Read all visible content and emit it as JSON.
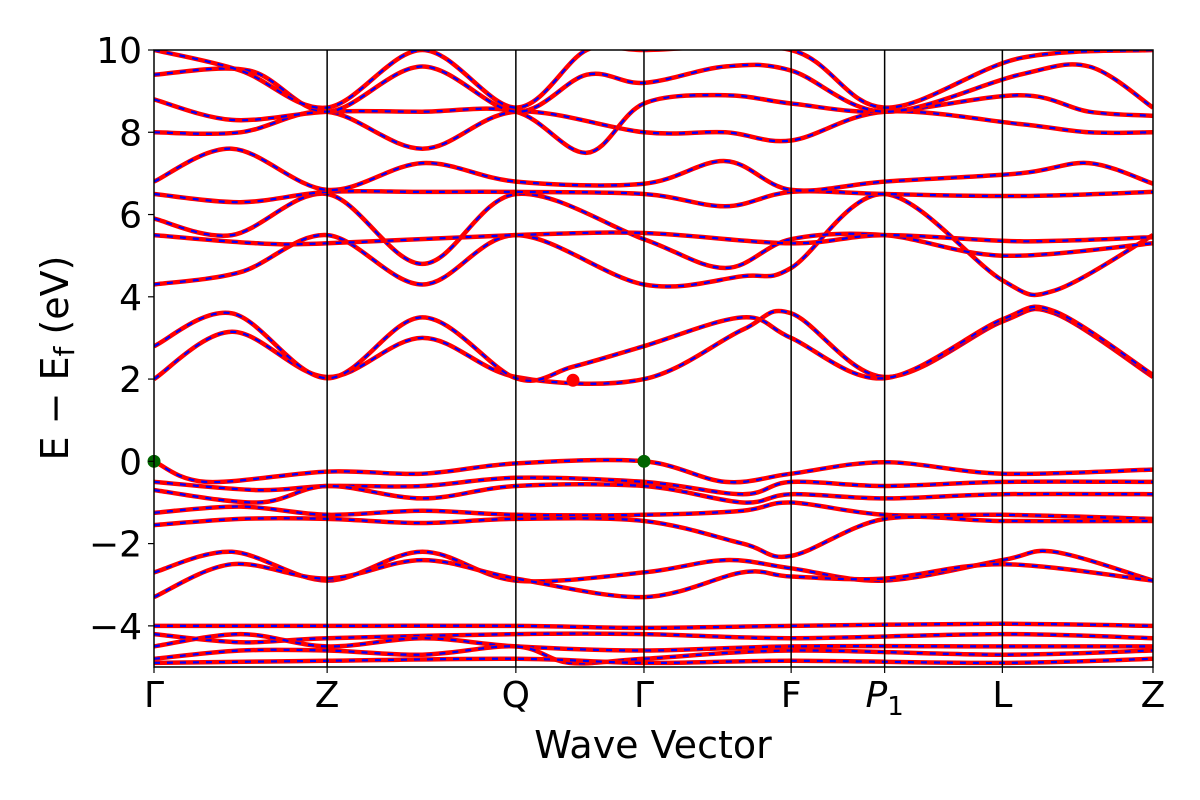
{
  "chart_data": {
    "type": "line",
    "title": "",
    "xlabel": "Wave Vector",
    "ylabel": "E − E_f (eV)",
    "ylabel_main": "E − E",
    "ylabel_sub": "f",
    "ylabel_unit": " (eV)",
    "ylim": [
      -5,
      10
    ],
    "yticks": [
      -4,
      -2,
      0,
      2,
      4,
      6,
      8,
      10
    ],
    "ytick_labels": [
      "−4",
      "−2",
      "0",
      "2",
      "4",
      "6",
      "8",
      "10"
    ],
    "kpoints": [
      {
        "label": "Γ",
        "x": 0.0
      },
      {
        "label": "Z",
        "x": 1.0
      },
      {
        "label": "Q",
        "x": 2.09
      },
      {
        "label": "Γ",
        "x": 2.83
      },
      {
        "label": "F",
        "x": 3.68
      },
      {
        "label": "P1",
        "x": 4.22,
        "italic": true,
        "main": "P",
        "sub": "1"
      },
      {
        "label": "L",
        "x": 4.9
      },
      {
        "label": "Z",
        "x": 5.77
      }
    ],
    "grid": false,
    "series_style": {
      "red": "#ff0000",
      "blue": "#0000ff"
    },
    "colors": {
      "cbm_marker": "#ff0000",
      "vbm_marker": "#006400"
    },
    "markers": [
      {
        "name": "VBM",
        "x": 0.0,
        "y": 0.0,
        "color": "#006400"
      },
      {
        "name": "VBM",
        "x": 2.83,
        "y": 0.0,
        "color": "#006400"
      },
      {
        "name": "CBM",
        "x": 2.42,
        "y": 1.97,
        "color": "#ff0000"
      }
    ],
    "bands": [
      [
        {
          "x": 0,
          "y": 2.0
        },
        {
          "x": 0.45,
          "y": 3.15
        },
        {
          "x": 1.0,
          "y": 2.05
        },
        {
          "x": 1.55,
          "y": 3.0
        },
        {
          "x": 2.09,
          "y": 2.05
        },
        {
          "x": 2.83,
          "y": 2.0
        },
        {
          "x": 3.4,
          "y": 3.2
        },
        {
          "x": 3.68,
          "y": 3.6
        },
        {
          "x": 4.22,
          "y": 2.05
        },
        {
          "x": 4.9,
          "y": 3.4
        },
        {
          "x": 5.2,
          "y": 3.6
        },
        {
          "x": 5.77,
          "y": 2.05
        }
      ],
      [
        {
          "x": 0,
          "y": 2.8
        },
        {
          "x": 0.45,
          "y": 3.6
        },
        {
          "x": 1.0,
          "y": 2.02
        },
        {
          "x": 1.55,
          "y": 3.5
        },
        {
          "x": 2.09,
          "y": 2.02
        },
        {
          "x": 2.42,
          "y": 2.3
        },
        {
          "x": 2.83,
          "y": 2.8
        },
        {
          "x": 3.4,
          "y": 3.5
        },
        {
          "x": 3.68,
          "y": 3.0
        },
        {
          "x": 4.22,
          "y": 2.02
        },
        {
          "x": 4.9,
          "y": 3.45
        },
        {
          "x": 5.2,
          "y": 3.65
        },
        {
          "x": 5.77,
          "y": 2.1
        }
      ],
      [
        {
          "x": 0,
          "y": 4.3
        },
        {
          "x": 0.5,
          "y": 4.6
        },
        {
          "x": 1.0,
          "y": 5.5
        },
        {
          "x": 1.55,
          "y": 4.3
        },
        {
          "x": 2.09,
          "y": 5.5
        },
        {
          "x": 2.83,
          "y": 4.3
        },
        {
          "x": 3.4,
          "y": 4.5
        },
        {
          "x": 3.68,
          "y": 4.7
        },
        {
          "x": 4.22,
          "y": 6.5
        },
        {
          "x": 4.9,
          "y": 4.4
        },
        {
          "x": 5.2,
          "y": 4.15
        },
        {
          "x": 5.77,
          "y": 5.5
        }
      ],
      [
        {
          "x": 0,
          "y": 5.9
        },
        {
          "x": 0.45,
          "y": 5.5
        },
        {
          "x": 1.0,
          "y": 6.5
        },
        {
          "x": 1.55,
          "y": 4.8
        },
        {
          "x": 2.09,
          "y": 6.5
        },
        {
          "x": 2.83,
          "y": 5.4
        },
        {
          "x": 3.3,
          "y": 4.7
        },
        {
          "x": 3.68,
          "y": 5.4
        },
        {
          "x": 4.22,
          "y": 5.5
        },
        {
          "x": 4.9,
          "y": 5.0
        },
        {
          "x": 5.77,
          "y": 5.3
        }
      ],
      [
        {
          "x": 0,
          "y": 5.5
        },
        {
          "x": 0.6,
          "y": 5.3
        },
        {
          "x": 1.0,
          "y": 5.3
        },
        {
          "x": 2.09,
          "y": 5.5
        },
        {
          "x": 2.83,
          "y": 5.55
        },
        {
          "x": 3.68,
          "y": 5.3
        },
        {
          "x": 4.22,
          "y": 5.5
        },
        {
          "x": 5.0,
          "y": 5.35
        },
        {
          "x": 5.77,
          "y": 5.45
        }
      ],
      [
        {
          "x": 0,
          "y": 6.5
        },
        {
          "x": 0.5,
          "y": 6.3
        },
        {
          "x": 1.0,
          "y": 6.55
        },
        {
          "x": 1.55,
          "y": 6.55
        },
        {
          "x": 2.09,
          "y": 6.55
        },
        {
          "x": 2.83,
          "y": 6.5
        },
        {
          "x": 3.3,
          "y": 6.2
        },
        {
          "x": 3.68,
          "y": 6.55
        },
        {
          "x": 4.22,
          "y": 6.5
        },
        {
          "x": 5.0,
          "y": 6.45
        },
        {
          "x": 5.77,
          "y": 6.55
        }
      ],
      [
        {
          "x": 0,
          "y": 6.8
        },
        {
          "x": 0.45,
          "y": 7.6
        },
        {
          "x": 1.0,
          "y": 6.6
        },
        {
          "x": 1.55,
          "y": 7.25
        },
        {
          "x": 2.09,
          "y": 6.8
        },
        {
          "x": 2.83,
          "y": 6.75
        },
        {
          "x": 3.3,
          "y": 7.3
        },
        {
          "x": 3.68,
          "y": 6.6
        },
        {
          "x": 4.22,
          "y": 6.8
        },
        {
          "x": 5.0,
          "y": 7.0
        },
        {
          "x": 5.4,
          "y": 7.25
        },
        {
          "x": 5.77,
          "y": 6.75
        }
      ],
      [
        {
          "x": 0,
          "y": 8.0
        },
        {
          "x": 0.5,
          "y": 8.0
        },
        {
          "x": 1.0,
          "y": 8.5
        },
        {
          "x": 1.55,
          "y": 7.6
        },
        {
          "x": 2.09,
          "y": 8.5
        },
        {
          "x": 2.83,
          "y": 8.0
        },
        {
          "x": 3.3,
          "y": 8.0
        },
        {
          "x": 3.68,
          "y": 7.8
        },
        {
          "x": 4.22,
          "y": 8.5
        },
        {
          "x": 5.0,
          "y": 8.2
        },
        {
          "x": 5.4,
          "y": 8.0
        },
        {
          "x": 5.77,
          "y": 8.0
        }
      ],
      [
        {
          "x": 0,
          "y": 8.8
        },
        {
          "x": 0.45,
          "y": 8.3
        },
        {
          "x": 1.0,
          "y": 8.5
        },
        {
          "x": 1.55,
          "y": 8.5
        },
        {
          "x": 2.09,
          "y": 8.5
        },
        {
          "x": 2.5,
          "y": 7.5
        },
        {
          "x": 2.83,
          "y": 8.7
        },
        {
          "x": 3.3,
          "y": 8.9
        },
        {
          "x": 3.68,
          "y": 8.7
        },
        {
          "x": 4.22,
          "y": 8.5
        },
        {
          "x": 5.0,
          "y": 8.9
        },
        {
          "x": 5.4,
          "y": 8.5
        },
        {
          "x": 5.77,
          "y": 8.4
        }
      ],
      [
        {
          "x": 0,
          "y": 9.4
        },
        {
          "x": 0.55,
          "y": 9.5
        },
        {
          "x": 1.0,
          "y": 8.5
        },
        {
          "x": 1.55,
          "y": 9.6
        },
        {
          "x": 2.09,
          "y": 8.5
        },
        {
          "x": 2.5,
          "y": 9.4
        },
        {
          "x": 2.83,
          "y": 9.2
        },
        {
          "x": 3.3,
          "y": 9.6
        },
        {
          "x": 3.68,
          "y": 9.5
        },
        {
          "x": 4.22,
          "y": 8.5
        },
        {
          "x": 5.0,
          "y": 9.4
        },
        {
          "x": 5.4,
          "y": 9.6
        },
        {
          "x": 5.77,
          "y": 8.6
        }
      ],
      [
        {
          "x": 0,
          "y": 10.0
        },
        {
          "x": 0.5,
          "y": 9.5
        },
        {
          "x": 1.0,
          "y": 8.6
        },
        {
          "x": 1.55,
          "y": 10.0
        },
        {
          "x": 2.09,
          "y": 8.6
        },
        {
          "x": 2.5,
          "y": 10.0
        },
        {
          "x": 2.83,
          "y": 10.0
        },
        {
          "x": 3.68,
          "y": 10.0
        },
        {
          "x": 4.22,
          "y": 8.6
        },
        {
          "x": 5.0,
          "y": 9.8
        },
        {
          "x": 5.77,
          "y": 10.0
        }
      ],
      [
        {
          "x": 0,
          "y": 0.0
        },
        {
          "x": 0.3,
          "y": -0.5
        },
        {
          "x": 1.0,
          "y": -0.25
        },
        {
          "x": 1.55,
          "y": -0.3
        },
        {
          "x": 2.09,
          "y": -0.05
        },
        {
          "x": 2.83,
          "y": 0.0
        },
        {
          "x": 3.3,
          "y": -0.5
        },
        {
          "x": 3.68,
          "y": -0.3
        },
        {
          "x": 4.22,
          "y": -0.02
        },
        {
          "x": 4.9,
          "y": -0.3
        },
        {
          "x": 5.77,
          "y": -0.2
        }
      ],
      [
        {
          "x": 0,
          "y": -0.5
        },
        {
          "x": 0.6,
          "y": -0.7
        },
        {
          "x": 1.0,
          "y": -0.6
        },
        {
          "x": 1.55,
          "y": -0.6
        },
        {
          "x": 2.09,
          "y": -0.4
        },
        {
          "x": 2.83,
          "y": -0.5
        },
        {
          "x": 3.4,
          "y": -0.8
        },
        {
          "x": 3.68,
          "y": -0.5
        },
        {
          "x": 4.22,
          "y": -0.6
        },
        {
          "x": 4.9,
          "y": -0.5
        },
        {
          "x": 5.77,
          "y": -0.5
        }
      ],
      [
        {
          "x": 0,
          "y": -0.7
        },
        {
          "x": 0.6,
          "y": -1.0
        },
        {
          "x": 1.0,
          "y": -0.6
        },
        {
          "x": 1.55,
          "y": -0.9
        },
        {
          "x": 2.09,
          "y": -0.6
        },
        {
          "x": 2.83,
          "y": -0.6
        },
        {
          "x": 3.4,
          "y": -1.0
        },
        {
          "x": 3.68,
          "y": -0.8
        },
        {
          "x": 4.22,
          "y": -0.9
        },
        {
          "x": 4.9,
          "y": -0.8
        },
        {
          "x": 5.77,
          "y": -0.8
        }
      ],
      [
        {
          "x": 0,
          "y": -1.25
        },
        {
          "x": 0.5,
          "y": -1.1
        },
        {
          "x": 1.0,
          "y": -1.3
        },
        {
          "x": 1.55,
          "y": -1.2
        },
        {
          "x": 2.09,
          "y": -1.3
        },
        {
          "x": 2.83,
          "y": -1.3
        },
        {
          "x": 3.4,
          "y": -1.2
        },
        {
          "x": 3.68,
          "y": -1.0
        },
        {
          "x": 4.22,
          "y": -1.3
        },
        {
          "x": 4.9,
          "y": -1.3
        },
        {
          "x": 5.77,
          "y": -1.4
        }
      ],
      [
        {
          "x": 0,
          "y": -1.55
        },
        {
          "x": 0.5,
          "y": -1.4
        },
        {
          "x": 1.0,
          "y": -1.4
        },
        {
          "x": 1.55,
          "y": -1.5
        },
        {
          "x": 2.09,
          "y": -1.4
        },
        {
          "x": 2.83,
          "y": -1.45
        },
        {
          "x": 3.4,
          "y": -2.0
        },
        {
          "x": 3.68,
          "y": -2.3
        },
        {
          "x": 4.22,
          "y": -1.4
        },
        {
          "x": 4.9,
          "y": -1.45
        },
        {
          "x": 5.77,
          "y": -1.45
        }
      ],
      [
        {
          "x": 0,
          "y": -2.7
        },
        {
          "x": 0.45,
          "y": -2.2
        },
        {
          "x": 1.0,
          "y": -2.9
        },
        {
          "x": 1.55,
          "y": -2.2
        },
        {
          "x": 2.09,
          "y": -2.9
        },
        {
          "x": 2.83,
          "y": -2.7
        },
        {
          "x": 3.3,
          "y": -2.4
        },
        {
          "x": 3.68,
          "y": -2.6
        },
        {
          "x": 4.22,
          "y": -2.9
        },
        {
          "x": 4.9,
          "y": -2.4
        },
        {
          "x": 5.2,
          "y": -2.2
        },
        {
          "x": 5.77,
          "y": -2.9
        }
      ],
      [
        {
          "x": 0,
          "y": -3.3
        },
        {
          "x": 0.45,
          "y": -2.5
        },
        {
          "x": 1.0,
          "y": -2.85
        },
        {
          "x": 1.55,
          "y": -2.4
        },
        {
          "x": 2.09,
          "y": -2.85
        },
        {
          "x": 2.83,
          "y": -3.3
        },
        {
          "x": 3.4,
          "y": -2.7
        },
        {
          "x": 3.68,
          "y": -2.8
        },
        {
          "x": 4.22,
          "y": -2.85
        },
        {
          "x": 4.9,
          "y": -2.5
        },
        {
          "x": 5.77,
          "y": -2.9
        }
      ],
      [
        {
          "x": 0,
          "y": -4.0
        },
        {
          "x": 1.0,
          "y": -4.0
        },
        {
          "x": 2.09,
          "y": -4.0
        },
        {
          "x": 2.83,
          "y": -4.05
        },
        {
          "x": 3.68,
          "y": -4.0
        },
        {
          "x": 4.9,
          "y": -3.95
        },
        {
          "x": 5.77,
          "y": -4.0
        }
      ],
      [
        {
          "x": 0,
          "y": -4.2
        },
        {
          "x": 0.5,
          "y": -4.4
        },
        {
          "x": 1.0,
          "y": -4.3
        },
        {
          "x": 2.09,
          "y": -4.2
        },
        {
          "x": 2.83,
          "y": -4.2
        },
        {
          "x": 3.68,
          "y": -4.3
        },
        {
          "x": 4.9,
          "y": -4.2
        },
        {
          "x": 5.77,
          "y": -4.3
        }
      ],
      [
        {
          "x": 0,
          "y": -4.5
        },
        {
          "x": 0.5,
          "y": -4.2
        },
        {
          "x": 1.0,
          "y": -4.5
        },
        {
          "x": 1.55,
          "y": -4.3
        },
        {
          "x": 2.09,
          "y": -4.5
        },
        {
          "x": 2.83,
          "y": -4.6
        },
        {
          "x": 3.68,
          "y": -4.5
        },
        {
          "x": 4.9,
          "y": -4.5
        },
        {
          "x": 5.77,
          "y": -4.5
        }
      ],
      [
        {
          "x": 0,
          "y": -4.8
        },
        {
          "x": 0.5,
          "y": -4.6
        },
        {
          "x": 1.0,
          "y": -4.6
        },
        {
          "x": 1.55,
          "y": -4.7
        },
        {
          "x": 2.09,
          "y": -4.5
        },
        {
          "x": 2.4,
          "y": -4.9
        },
        {
          "x": 2.83,
          "y": -4.8
        },
        {
          "x": 3.68,
          "y": -4.6
        },
        {
          "x": 4.9,
          "y": -4.7
        },
        {
          "x": 5.77,
          "y": -4.6
        }
      ],
      [
        {
          "x": 0,
          "y": -4.9
        },
        {
          "x": 1.0,
          "y": -4.85
        },
        {
          "x": 2.09,
          "y": -4.8
        },
        {
          "x": 2.83,
          "y": -4.9
        },
        {
          "x": 3.68,
          "y": -4.85
        },
        {
          "x": 4.9,
          "y": -4.9
        },
        {
          "x": 5.77,
          "y": -4.8
        }
      ]
    ]
  }
}
